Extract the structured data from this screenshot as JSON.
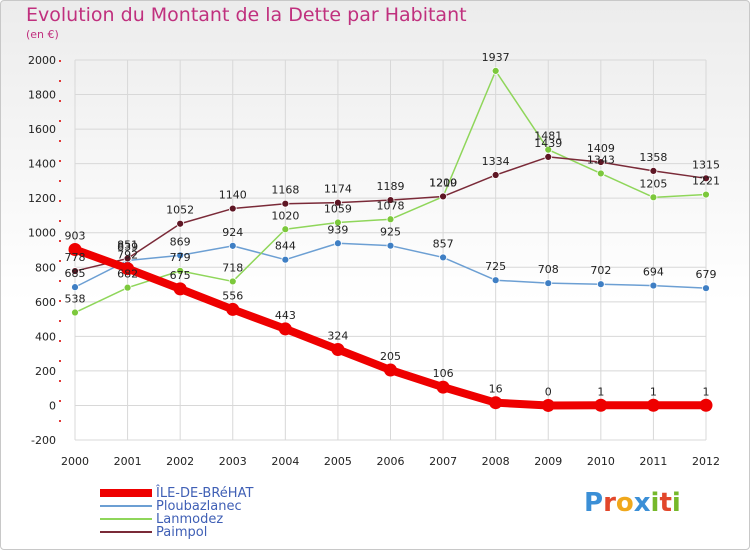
{
  "title": "Evolution du Montant de la Dette par Habitant",
  "subtitle": "(en €)",
  "logo_text": "Proxiti",
  "colors": {
    "title": "#c0307e",
    "axis_text": "#222222",
    "grid": "#d8d8d8",
    "legend_text": "#3f5fb5",
    "logo": [
      "#3b8fd6",
      "#e2472b",
      "#f0a81c",
      "#3b8fd6",
      "#76b82a",
      "#e2472b",
      "#76b82a"
    ]
  },
  "chart_data": {
    "type": "line",
    "title": "Evolution du Montant de la Dette par Habitant",
    "subtitle": "(en €)",
    "x": [
      2000,
      2001,
      2002,
      2003,
      2004,
      2005,
      2006,
      2007,
      2008,
      2009,
      2010,
      2011,
      2012
    ],
    "ylim": [
      -200,
      2000
    ],
    "yticks": [
      -200,
      0,
      200,
      400,
      600,
      800,
      1000,
      1200,
      1400,
      1600,
      1800,
      2000
    ],
    "grid": true,
    "legend_position": "bottom-left",
    "series": [
      {
        "name": "ÎLE-DE-BRéHAT",
        "color": "#ee0000",
        "marker": "#ee0000",
        "width": "thick",
        "values": [
          903,
          792,
          675,
          556,
          443,
          324,
          205,
          106,
          16,
          0,
          1,
          1,
          1
        ]
      },
      {
        "name": "Ploubazlanec",
        "color": "#6c9fd3",
        "marker": "#3f7fc4",
        "width": "thin",
        "values": [
          685,
          839,
          869,
          924,
          844,
          939,
          925,
          857,
          725,
          708,
          702,
          694,
          679
        ]
      },
      {
        "name": "Lanmodez",
        "color": "#8fd65a",
        "marker": "#7cc83c",
        "width": "thin",
        "values": [
          538,
          682,
          779,
          718,
          1020,
          1059,
          1078,
          1209,
          1937,
          1481,
          1343,
          1205,
          1221
        ]
      },
      {
        "name": "Paimpol",
        "color": "#7a2a38",
        "marker": "#5e1624",
        "width": "thin",
        "values": [
          778,
          851,
          1052,
          1140,
          1168,
          1174,
          1189,
          1210,
          1334,
          1439,
          1409,
          1358,
          1315
        ]
      }
    ]
  }
}
